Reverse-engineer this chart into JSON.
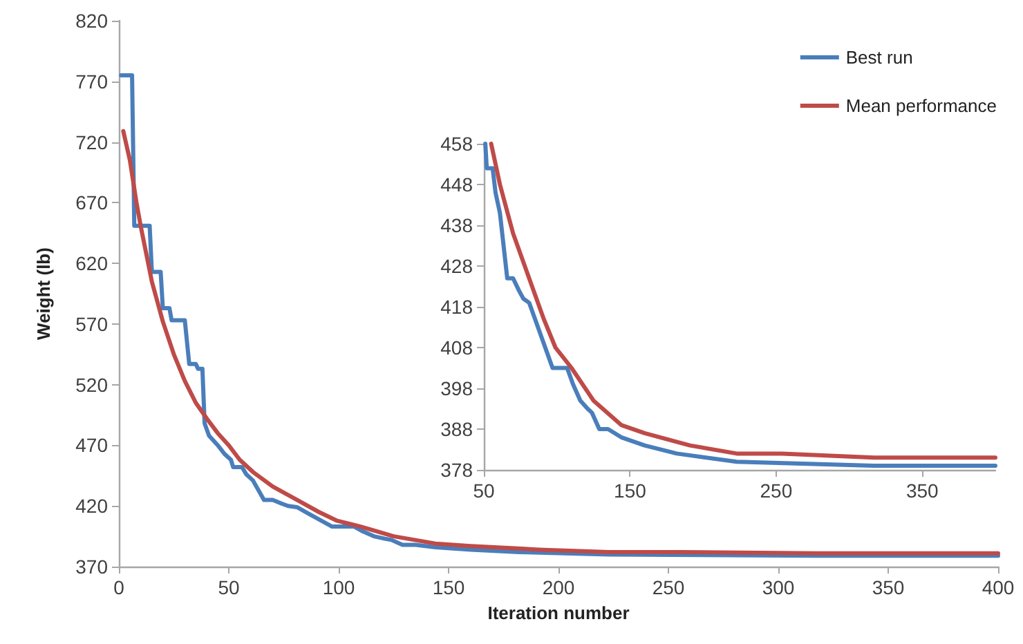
{
  "chart_data": [
    {
      "type": "line",
      "xlabel": "Iteration number",
      "ylabel": "Weight (lb)",
      "xlim": [
        0,
        400
      ],
      "xticks": [
        0,
        50,
        100,
        150,
        200,
        250,
        300,
        350,
        400
      ],
      "ylim": [
        370,
        820
      ],
      "yticks": [
        370,
        420,
        470,
        520,
        570,
        620,
        670,
        720,
        770,
        820
      ],
      "grid": false,
      "legend": "top right",
      "marker": "none",
      "line_style": "solid",
      "series": [
        {
          "name": "Best run",
          "color": "#4a7ebb",
          "x": [
            1,
            6,
            7,
            14,
            15,
            19,
            20,
            23,
            24,
            30,
            32,
            35,
            36,
            38,
            39,
            41,
            45,
            48,
            51,
            52,
            56,
            58,
            61,
            66,
            70,
            74,
            77,
            81,
            86,
            91,
            97,
            107,
            111,
            116,
            121,
            124,
            129,
            135,
            144,
            160,
            182,
            223,
            317,
            400
          ],
          "values": [
            775,
            775,
            651,
            651,
            613,
            613,
            583,
            583,
            573,
            573,
            537,
            537,
            533,
            533,
            488,
            478,
            470,
            463,
            458,
            452,
            452,
            446,
            441,
            425,
            425,
            422,
            420,
            419,
            414,
            409,
            403,
            403,
            399,
            395,
            393,
            392,
            388,
            388,
            386,
            384,
            382,
            380,
            379,
            379
          ]
        },
        {
          "name": "Mean performance",
          "color": "#be4b48",
          "x": [
            2,
            5,
            8,
            10,
            15,
            20,
            25,
            30,
            35,
            40,
            45,
            50,
            55,
            61,
            70,
            81,
            91,
            99,
            110,
            125,
            144,
            160,
            191,
            223,
            254,
            317,
            400
          ],
          "values": [
            729,
            705,
            670,
            650,
            605,
            572,
            545,
            523,
            505,
            492,
            480,
            470,
            458,
            448,
            436,
            425,
            415,
            408,
            403,
            395,
            389,
            387,
            384,
            382,
            382,
            381,
            381
          ]
        }
      ]
    },
    {
      "type": "line",
      "xlim": [
        50,
        400
      ],
      "xticks": [
        50,
        150,
        250,
        350
      ],
      "ylim": [
        378,
        458
      ],
      "yticks": [
        378,
        388,
        398,
        408,
        418,
        428,
        438,
        448,
        458
      ],
      "grid": false,
      "marker": "none",
      "line_style": "solid",
      "series": [
        {
          "color": "#4a7ebb",
          "x": [
            51,
            52,
            56,
            58,
            61,
            66,
            70,
            74,
            77,
            81,
            86,
            91,
            97,
            107,
            111,
            116,
            121,
            124,
            129,
            135,
            144,
            160,
            182,
            223,
            317,
            400
          ],
          "values": [
            458,
            452,
            452,
            446,
            441,
            425,
            425,
            422,
            420,
            419,
            414,
            409,
            403,
            403,
            399,
            395,
            393,
            392,
            388,
            388,
            386,
            384,
            382,
            380,
            379,
            379
          ]
        },
        {
          "color": "#be4b48",
          "x": [
            55,
            61,
            70,
            81,
            91,
            99,
            110,
            125,
            144,
            160,
            191,
            223,
            254,
            317,
            400
          ],
          "values": [
            458,
            448,
            436,
            425,
            415,
            408,
            403,
            395,
            389,
            387,
            384,
            382,
            382,
            381,
            381
          ]
        }
      ]
    }
  ]
}
